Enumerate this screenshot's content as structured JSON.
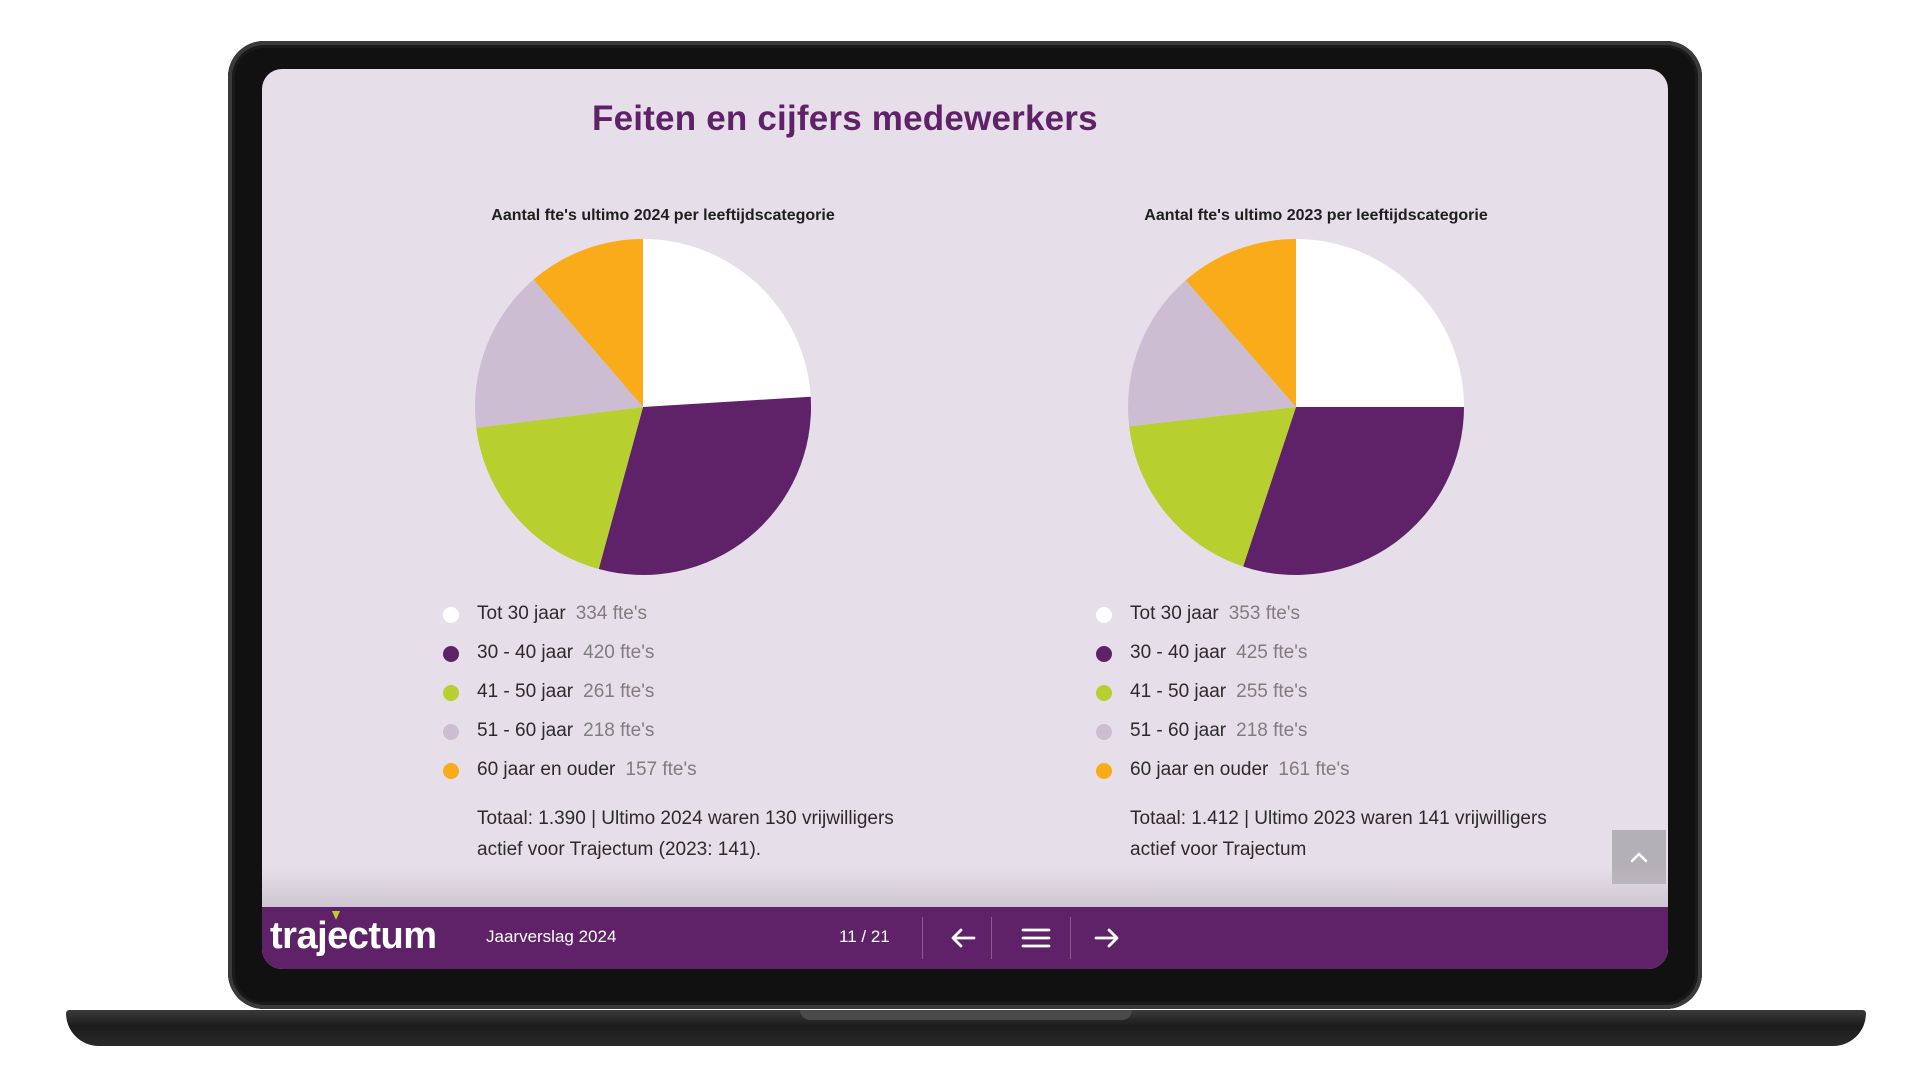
{
  "page": {
    "title": "Feiten en cijfers medewerkers"
  },
  "charts": [
    {
      "title": "Aantal fte's ultimo 2024 per leeftijdscategorie",
      "legend": [
        {
          "label": "Tot 30 jaar",
          "value": "334 fte's",
          "color": "#ffffff"
        },
        {
          "label": "30 - 40 jaar",
          "value": "420 fte's",
          "color": "#5f2167"
        },
        {
          "label": "41 - 50 jaar",
          "value": "261 fte's",
          "color": "#b7cf2f"
        },
        {
          "label": "51 - 60 jaar",
          "value": "218 fte's",
          "color": "#cdbdd3"
        },
        {
          "label": "60 jaar en ouder",
          "value": "157 fte's",
          "color": "#f9ab1a"
        }
      ],
      "total": "Totaal: 1.390 | Ultimo 2024 waren 130 vrijwilligers actief voor Trajectum (2023: 141)."
    },
    {
      "title": "Aantal fte's ultimo 2023 per leeftijdscategorie",
      "legend": [
        {
          "label": "Tot 30 jaar",
          "value": "353 fte's",
          "color": "#ffffff"
        },
        {
          "label": "30 - 40 jaar",
          "value": "425 fte's",
          "color": "#5f2167"
        },
        {
          "label": "41 - 50 jaar",
          "value": "255 fte's",
          "color": "#b7cf2f"
        },
        {
          "label": "51 - 60 jaar",
          "value": "218 fte's",
          "color": "#cdbdd3"
        },
        {
          "label": "60 jaar en ouder",
          "value": "161 fte's",
          "color": "#f9ab1a"
        }
      ],
      "total": "Totaal: 1.412 | Ultimo 2023 waren 141 vrijwilligers actief voor Trajectum"
    }
  ],
  "chart_data": [
    {
      "type": "pie",
      "title": "Aantal fte's ultimo 2024 per leeftijdscategorie",
      "categories": [
        "Tot 30 jaar",
        "30 - 40 jaar",
        "41 - 50 jaar",
        "51 - 60 jaar",
        "60 jaar en ouder"
      ],
      "values": [
        334,
        420,
        261,
        218,
        157
      ],
      "colors": [
        "#ffffff",
        "#5f2167",
        "#b7cf2f",
        "#cdbdd3",
        "#f9ab1a"
      ]
    },
    {
      "type": "pie",
      "title": "Aantal fte's ultimo 2023 per leeftijdscategorie",
      "categories": [
        "Tot 30 jaar",
        "30 - 40 jaar",
        "41 - 50 jaar",
        "51 - 60 jaar",
        "60 jaar en ouder"
      ],
      "values": [
        353,
        425,
        255,
        218,
        161
      ],
      "colors": [
        "#ffffff",
        "#5f2167",
        "#b7cf2f",
        "#cdbdd3",
        "#f9ab1a"
      ]
    }
  ],
  "footer": {
    "logo_text": "trajectum",
    "report_name": "Jaarverslag 2024",
    "page_indicator": "11 / 21"
  },
  "icons": {
    "scroll_top": "chevron-up-icon",
    "prev": "arrow-left-icon",
    "menu": "menu-icon",
    "next": "arrow-right-icon"
  }
}
